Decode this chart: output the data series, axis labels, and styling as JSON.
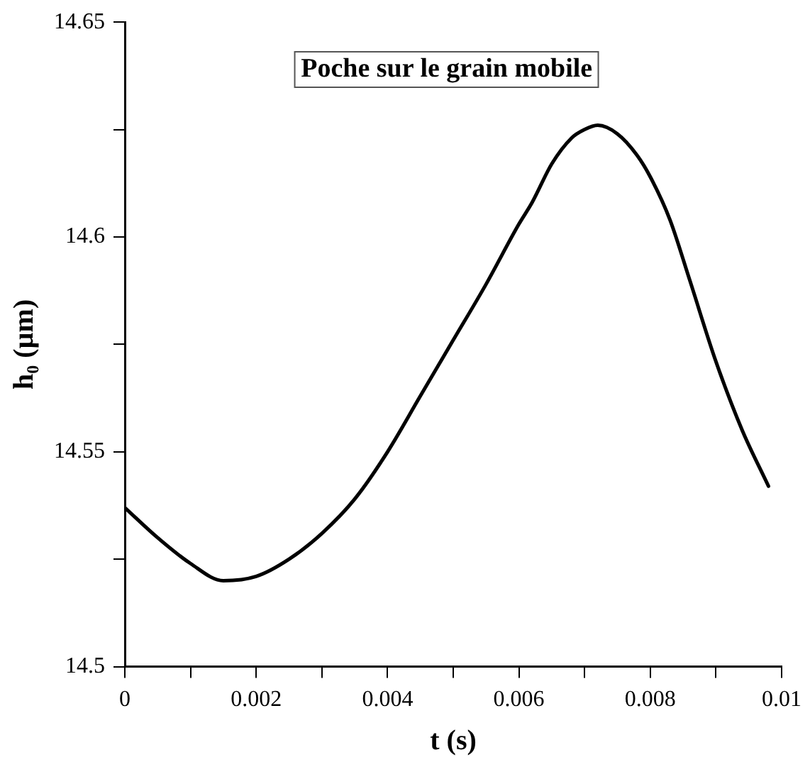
{
  "chart_data": {
    "type": "line",
    "title": "Poche sur le grain mobile",
    "xlabel": "t (s)",
    "ylabel": "h₀ (µm)",
    "xlim": [
      0,
      0.01
    ],
    "ylim": [
      14.5,
      14.65
    ],
    "xticks": [
      0,
      {
        "value": 0.001,
        "label": null
      },
      0.002,
      {
        "value": 0.003,
        "label": null
      },
      0.004,
      {
        "value": 0.005,
        "label": null
      },
      0.006,
      {
        "value": 0.007,
        "label": null
      },
      0.008,
      {
        "value": 0.009,
        "label": null
      },
      0.01
    ],
    "yticks": [
      14.5,
      {
        "value": 14.525,
        "label": null
      },
      14.55,
      {
        "value": 14.575,
        "label": null
      },
      14.6,
      {
        "value": 14.625,
        "label": null
      },
      14.65
    ],
    "grid": false,
    "legend": false,
    "marker": "none",
    "line_style": "solid",
    "series": [
      {
        "color": "#000000",
        "x": [
          0,
          0.0005,
          0.001,
          0.0015,
          0.002,
          0.0025,
          0.003,
          0.0035,
          0.004,
          0.0045,
          0.005,
          0.0055,
          0.006,
          0.0062,
          0.0065,
          0.0068,
          0.007,
          0.0072,
          0.0075,
          0.0078,
          0.008,
          0.0083,
          0.0086,
          0.009,
          0.0094,
          0.0098
        ],
        "values": [
          14.537,
          14.53,
          14.524,
          14.52,
          14.521,
          14.525,
          14.531,
          14.539,
          14.55,
          14.563,
          14.576,
          14.589,
          14.603,
          14.608,
          14.617,
          14.623,
          14.625,
          14.626,
          14.624,
          14.619,
          14.614,
          14.604,
          14.59,
          14.571,
          14.555,
          14.542
        ]
      }
    ]
  }
}
